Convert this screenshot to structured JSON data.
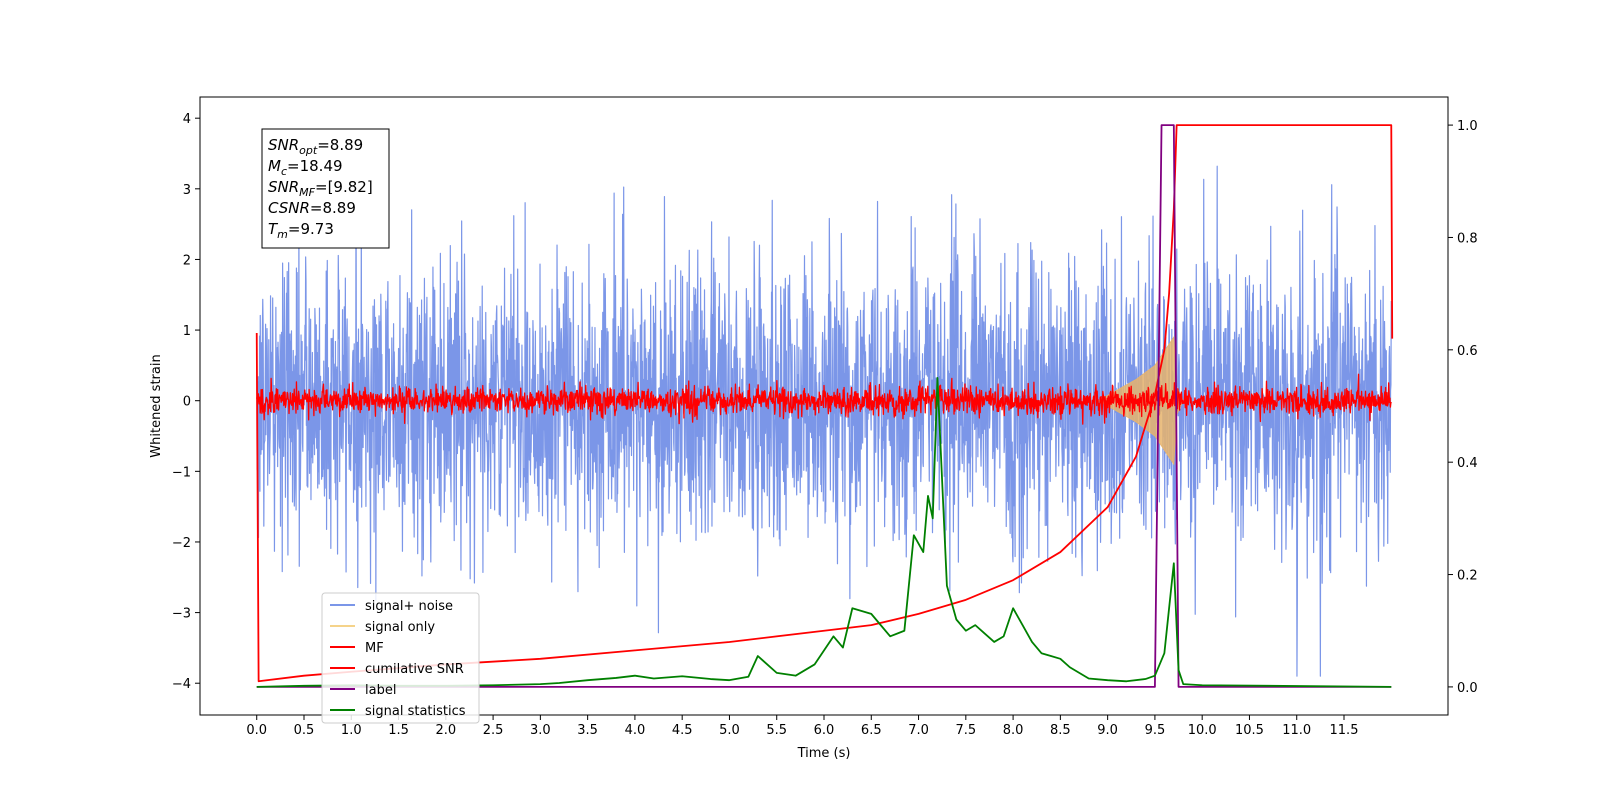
{
  "chart_data": {
    "type": "line",
    "xlabel": "Time (s)",
    "ylabel": "Whitened strain",
    "xlim": [
      -0.6,
      12.6
    ],
    "ylim": [
      -4.45,
      4.3
    ],
    "ylim_right": [
      -0.05,
      1.05
    ],
    "x_ticks": [
      "0.0",
      "0.5",
      "1.0",
      "1.5",
      "2.0",
      "2.5",
      "3.0",
      "3.5",
      "4.0",
      "4.5",
      "5.0",
      "5.5",
      "6.0",
      "6.5",
      "7.0",
      "7.5",
      "8.0",
      "8.5",
      "9.0",
      "9.5",
      "10.0",
      "10.5",
      "11.0",
      "11.5"
    ],
    "y_ticks": [
      "4",
      "3",
      "2",
      "1",
      "0",
      "−1",
      "−2",
      "−3",
      "−4"
    ],
    "y_ticks_right": [
      "1.0",
      "0.8",
      "0.6",
      "0.4",
      "0.2",
      "0.0"
    ],
    "annotation": {
      "lines": [
        {
          "base": "SNR",
          "sub": "opt",
          "value": "=8.89"
        },
        {
          "base": "M",
          "sub": "c",
          "value": "=18.49"
        },
        {
          "base": "SNR",
          "sub": "MF",
          "value": "=[9.82]"
        },
        {
          "base": "CSNR",
          "sub": "",
          "value": "=8.89"
        },
        {
          "base": "T",
          "sub": "m",
          "value": "=9.73"
        }
      ]
    },
    "legend": {
      "placement": "lower-left",
      "entries": [
        {
          "label": "signal+ noise",
          "color": "#7b96e8"
        },
        {
          "label": "signal only",
          "color": "#f5d38a"
        },
        {
          "label": "MF",
          "color": "#ff0000"
        },
        {
          "label": "cumilative SNR",
          "color": "#ff0000"
        },
        {
          "label": "label",
          "color": "#800080"
        },
        {
          "label": "signal statistics",
          "color": "#008000"
        }
      ]
    },
    "series": [
      {
        "name": "signal+ noise",
        "axis": "left",
        "color": "#7b96e8",
        "kind": "noise",
        "x_range": [
          0.0,
          12.0
        ],
        "mean": 0.0,
        "std": 1.0
      },
      {
        "name": "signal only",
        "axis": "left",
        "color": "#e8b46c",
        "kind": "chirp_envelope",
        "points": [
          [
            8.9,
            0.0
          ],
          [
            9.1,
            0.15
          ],
          [
            9.3,
            0.3
          ],
          [
            9.5,
            0.5
          ],
          [
            9.6,
            0.7
          ],
          [
            9.7,
            0.9
          ],
          [
            9.73,
            0.2
          ],
          [
            9.8,
            0.0
          ]
        ]
      },
      {
        "name": "MF",
        "axis": "left",
        "color": "#ff0000",
        "kind": "noise",
        "x_range": [
          0.0,
          12.0
        ],
        "mean": 0.0,
        "std": 0.1
      },
      {
        "name": "cumilative SNR",
        "axis": "right",
        "color": "#ff0000",
        "points": [
          [
            0.0,
            0.63
          ],
          [
            0.02,
            0.01
          ],
          [
            0.5,
            0.02
          ],
          [
            1.0,
            0.027
          ],
          [
            2.0,
            0.04
          ],
          [
            3.0,
            0.05
          ],
          [
            4.0,
            0.065
          ],
          [
            5.0,
            0.08
          ],
          [
            6.0,
            0.1
          ],
          [
            6.5,
            0.11
          ],
          [
            7.0,
            0.13
          ],
          [
            7.5,
            0.155
          ],
          [
            8.0,
            0.19
          ],
          [
            8.5,
            0.24
          ],
          [
            9.0,
            0.32
          ],
          [
            9.3,
            0.41
          ],
          [
            9.5,
            0.52
          ],
          [
            9.6,
            0.6
          ],
          [
            9.65,
            0.7
          ],
          [
            9.7,
            0.85
          ],
          [
            9.73,
            1.0
          ],
          [
            12.0,
            1.0
          ],
          [
            12.01,
            0.62
          ]
        ]
      },
      {
        "name": "label",
        "axis": "right",
        "color": "#800080",
        "points": [
          [
            0.0,
            0.0
          ],
          [
            9.5,
            0.0
          ],
          [
            9.57,
            1.0
          ],
          [
            9.7,
            1.0
          ],
          [
            9.75,
            0.0
          ],
          [
            12.0,
            0.0
          ]
        ]
      },
      {
        "name": "signal statistics",
        "axis": "right",
        "color": "#008000",
        "points": [
          [
            0.0,
            0.0
          ],
          [
            0.5,
            0.002
          ],
          [
            1.0,
            0.003
          ],
          [
            1.5,
            0.002
          ],
          [
            2.0,
            0.002
          ],
          [
            2.5,
            0.003
          ],
          [
            3.0,
            0.005
          ],
          [
            3.2,
            0.007
          ],
          [
            3.5,
            0.012
          ],
          [
            3.8,
            0.016
          ],
          [
            4.0,
            0.02
          ],
          [
            4.2,
            0.015
          ],
          [
            4.5,
            0.019
          ],
          [
            4.8,
            0.014
          ],
          [
            5.0,
            0.012
          ],
          [
            5.2,
            0.018
          ],
          [
            5.3,
            0.055
          ],
          [
            5.5,
            0.025
          ],
          [
            5.7,
            0.02
          ],
          [
            5.9,
            0.04
          ],
          [
            6.1,
            0.09
          ],
          [
            6.2,
            0.07
          ],
          [
            6.3,
            0.14
          ],
          [
            6.5,
            0.13
          ],
          [
            6.6,
            0.11
          ],
          [
            6.7,
            0.09
          ],
          [
            6.85,
            0.1
          ],
          [
            6.95,
            0.27
          ],
          [
            7.05,
            0.24
          ],
          [
            7.1,
            0.34
          ],
          [
            7.15,
            0.3
          ],
          [
            7.2,
            0.55
          ],
          [
            7.3,
            0.18
          ],
          [
            7.4,
            0.12
          ],
          [
            7.5,
            0.1
          ],
          [
            7.6,
            0.11
          ],
          [
            7.7,
            0.095
          ],
          [
            7.8,
            0.08
          ],
          [
            7.9,
            0.09
          ],
          [
            8.0,
            0.14
          ],
          [
            8.1,
            0.11
          ],
          [
            8.2,
            0.08
          ],
          [
            8.3,
            0.06
          ],
          [
            8.4,
            0.055
          ],
          [
            8.5,
            0.05
          ],
          [
            8.6,
            0.035
          ],
          [
            8.7,
            0.025
          ],
          [
            8.8,
            0.015
          ],
          [
            9.0,
            0.012
          ],
          [
            9.2,
            0.01
          ],
          [
            9.4,
            0.014
          ],
          [
            9.5,
            0.02
          ],
          [
            9.6,
            0.06
          ],
          [
            9.7,
            0.22
          ],
          [
            9.75,
            0.03
          ],
          [
            9.8,
            0.005
          ],
          [
            10.0,
            0.003
          ],
          [
            12.0,
            0.0
          ]
        ]
      }
    ]
  }
}
